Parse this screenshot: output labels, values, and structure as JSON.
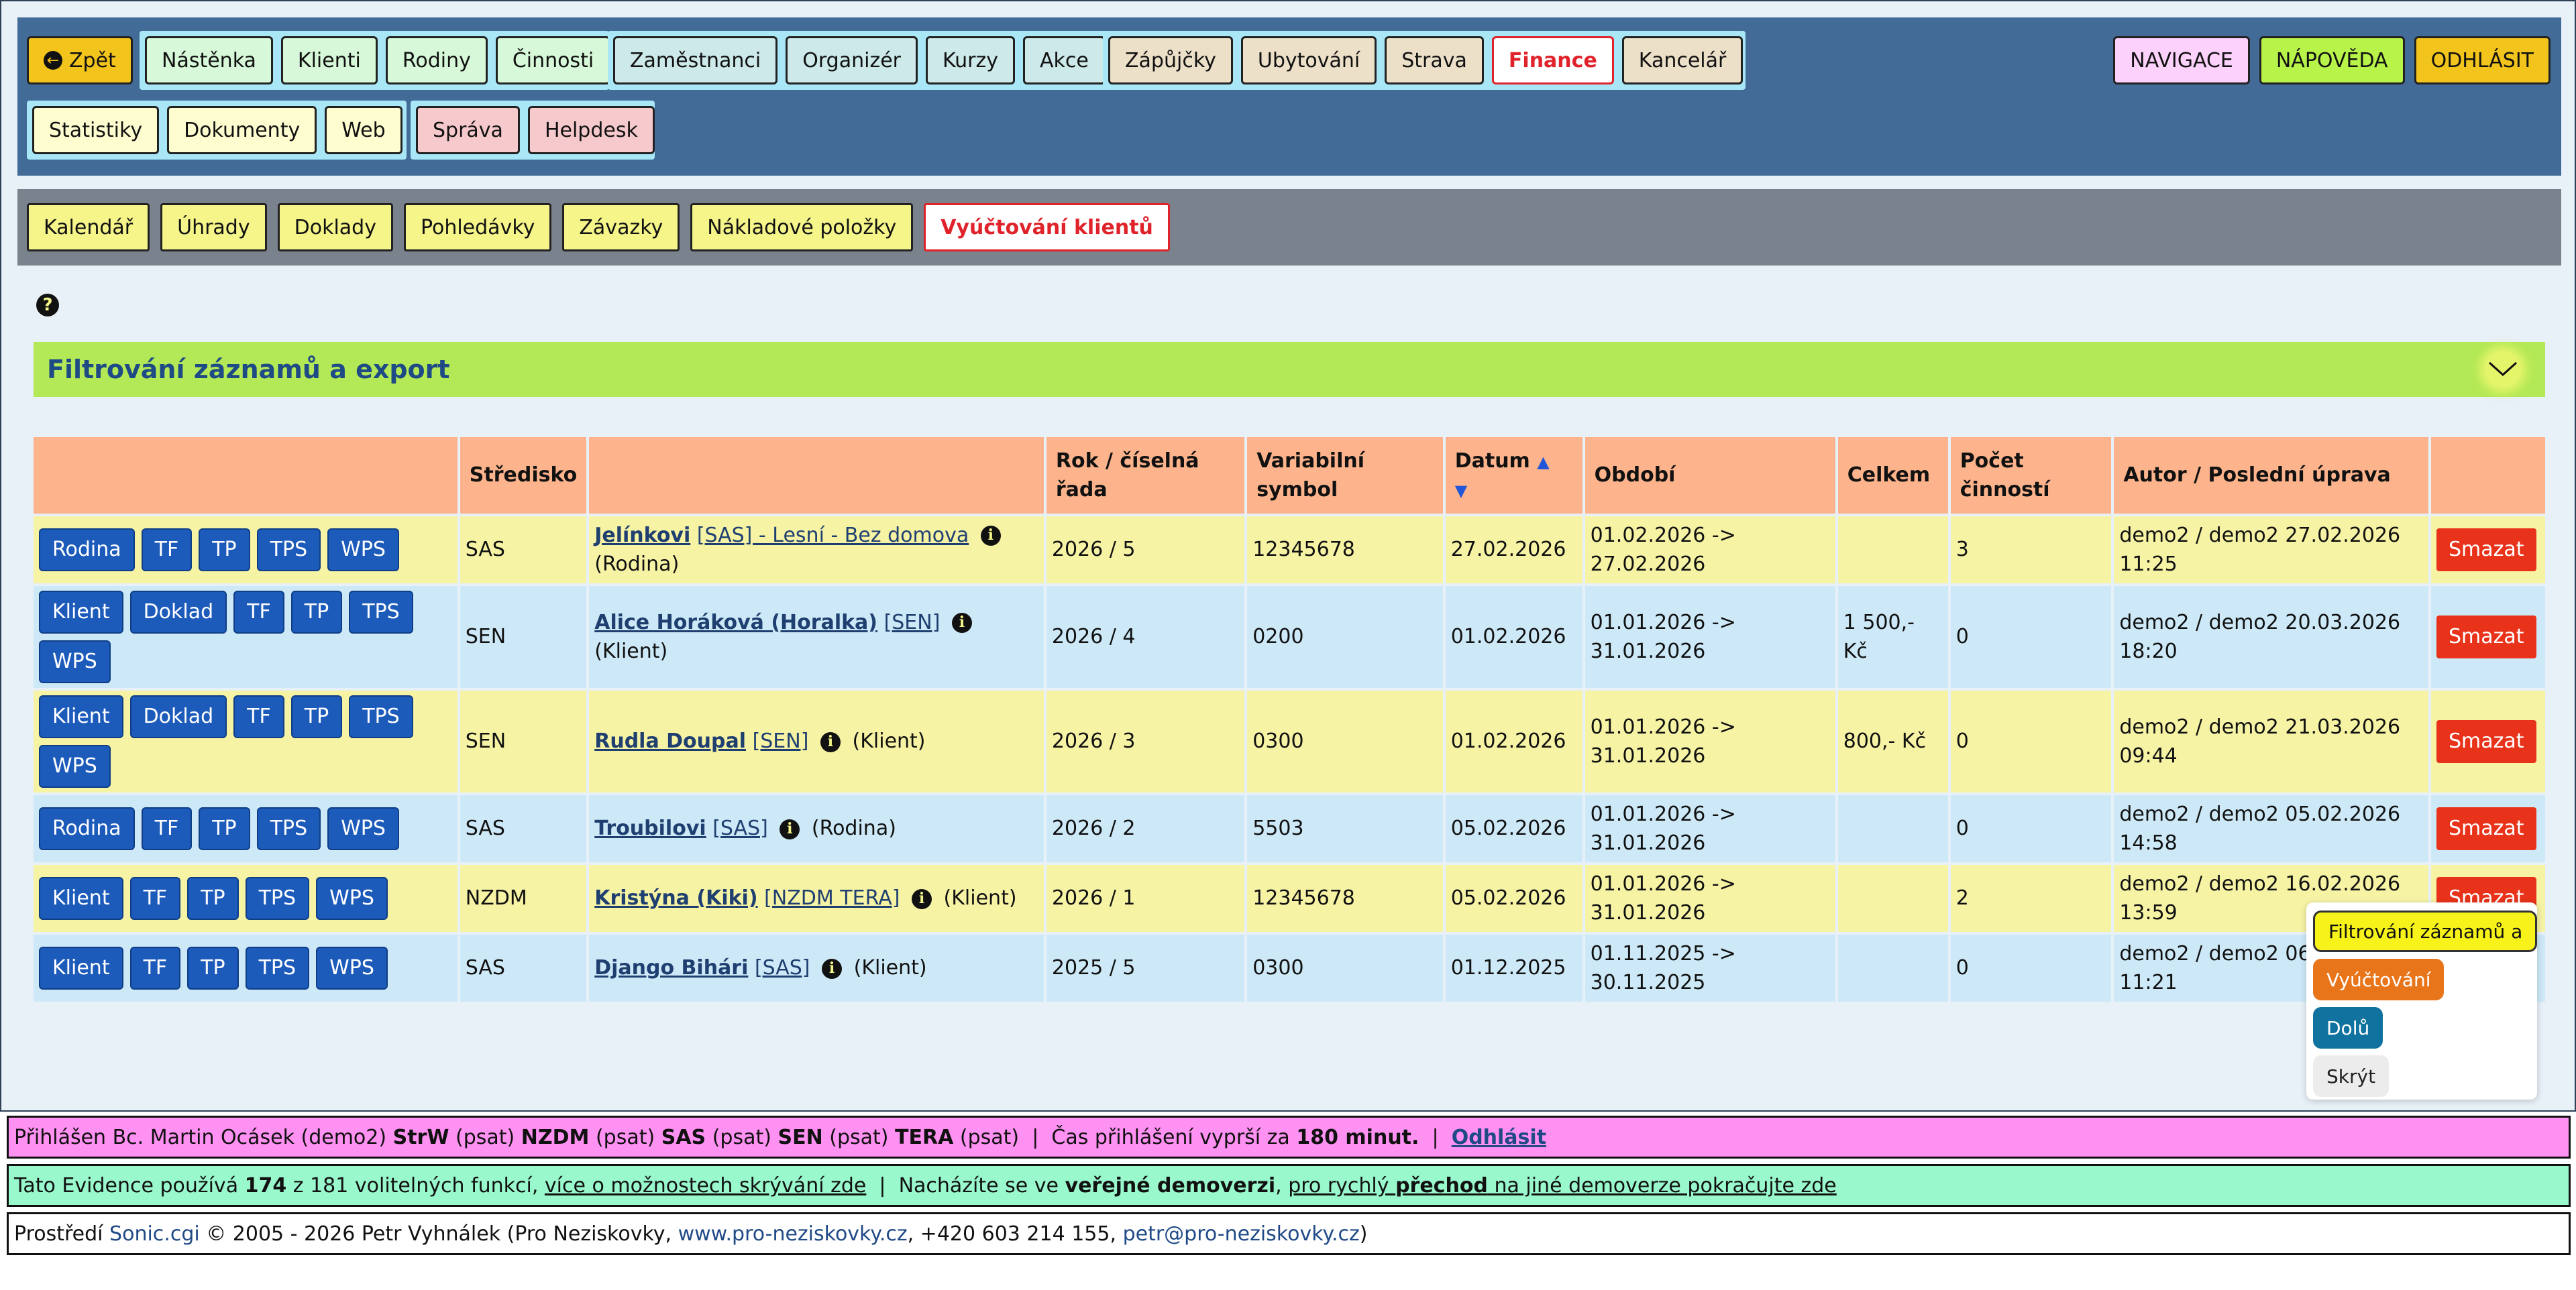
{
  "nav": {
    "back": "Zpět",
    "group1": [
      "Nástěnka",
      "Klienti",
      "Rodiny",
      "Činnosti"
    ],
    "group2": [
      "Zaměstnanci",
      "Organizér",
      "Kurzy",
      "Akce"
    ],
    "group3": [
      "Zápůjčky",
      "Ubytování",
      "Strava",
      "Finance",
      "Kancelář"
    ],
    "group4": [
      "Statistiky",
      "Dokumenty",
      "Web"
    ],
    "group5": [
      "Správa",
      "Helpdesk"
    ],
    "right": [
      "NAVIGACE",
      "NÁPOVĚDA",
      "ODHLÁSIT"
    ]
  },
  "subnav": [
    "Kalendář",
    "Úhrady",
    "Doklady",
    "Pohledávky",
    "Závazky",
    "Nákladové položky",
    "Vyúčtování klientů"
  ],
  "filter_title": "Filtrování záznamů a export",
  "table": {
    "headers": {
      "stredisko": "Středisko",
      "rok": "Rok / číselná řada",
      "vs": "Variabilní symbol",
      "datum": "Datum",
      "obdobi": "Období",
      "celkem": "Celkem",
      "pocet": "Počet činností",
      "autor": "Autor / Poslední úprava"
    },
    "delete_label": "Smazat",
    "rows": [
      {
        "buttons": [
          "Rodina",
          "TF",
          "TP",
          "TPS",
          "WPS"
        ],
        "stredisko": "SAS",
        "name": "Jelínkovi",
        "code": "[SAS] - Lesní - Bez domova",
        "type": "(Rodina)",
        "rok": "2026 / 5",
        "vs": "12345678",
        "datum": "27.02.2026",
        "obdobi_from": "01.02.2026 ->",
        "obdobi_to": "27.02.2026",
        "celkem": "",
        "pocet": "3",
        "autor": "demo2 / demo2 27.02.2026",
        "cas": "11:25"
      },
      {
        "buttons": [
          "Klient",
          "Doklad",
          "TF",
          "TP",
          "TPS",
          "WPS"
        ],
        "stredisko": "SEN",
        "name": "Alice Horáková (Horalka)",
        "code": "[SEN]",
        "type": "(Klient)",
        "rok": "2026 / 4",
        "vs": "0200",
        "datum": "01.02.2026",
        "obdobi_from": "01.01.2026 ->",
        "obdobi_to": "31.01.2026",
        "celkem": "1 500,- Kč",
        "pocet": "0",
        "autor": "demo2 / demo2 20.03.2026",
        "cas": "18:20"
      },
      {
        "buttons": [
          "Klient",
          "Doklad",
          "TF",
          "TP",
          "TPS",
          "WPS"
        ],
        "stredisko": "SEN",
        "name": "Rudla Doupal",
        "code": "[SEN]",
        "type": "(Klient)",
        "rok": "2026 / 3",
        "vs": "0300",
        "datum": "01.02.2026",
        "obdobi_from": "01.01.2026 ->",
        "obdobi_to": "31.01.2026",
        "celkem": "800,- Kč",
        "pocet": "0",
        "autor": "demo2 / demo2 21.03.2026",
        "cas": "09:44"
      },
      {
        "buttons": [
          "Rodina",
          "TF",
          "TP",
          "TPS",
          "WPS"
        ],
        "stredisko": "SAS",
        "name": "Troubilovi",
        "code": "[SAS]",
        "type": "(Rodina)",
        "rok": "2026 / 2",
        "vs": "5503",
        "datum": "05.02.2026",
        "obdobi_from": "01.01.2026 ->",
        "obdobi_to": "31.01.2026",
        "celkem": "",
        "pocet": "0",
        "autor": "demo2 / demo2 05.02.2026",
        "cas": "14:58"
      },
      {
        "buttons": [
          "Klient",
          "TF",
          "TP",
          "TPS",
          "WPS"
        ],
        "stredisko": "NZDM",
        "name": "Kristýna (Kiki)",
        "code": "[NZDM TERA]",
        "type": "(Klient)",
        "rok": "2026 / 1",
        "vs": "12345678",
        "datum": "05.02.2026",
        "obdobi_from": "01.01.2026 ->",
        "obdobi_to": "31.01.2026",
        "celkem": "",
        "pocet": "2",
        "autor": "demo2 / demo2 16.02.2026",
        "cas": "13:59"
      },
      {
        "buttons": [
          "Klient",
          "TF",
          "TP",
          "TPS",
          "WPS"
        ],
        "stredisko": "SAS",
        "name": "Django Bihári",
        "code": "[SAS]",
        "type": "(Klient)",
        "rok": "2025 / 5",
        "vs": "0300",
        "datum": "01.12.2025",
        "obdobi_from": "01.11.2025 ->",
        "obdobi_to": "30.11.2025",
        "celkem": "",
        "pocet": "0",
        "autor": "demo2 / demo2 06",
        "cas": "11:21"
      }
    ]
  },
  "popup": [
    "Filtrování záznamů a",
    "Vyúčtování",
    "Dolů",
    "Skrýt"
  ],
  "footer": {
    "line1": {
      "prefix": "Přihlášen Bc. Martin Ocásek (demo2)",
      "units": [
        [
          "StrW",
          "(psat)"
        ],
        [
          "NZDM",
          "(psat)"
        ],
        [
          "SAS",
          "(psat)"
        ],
        [
          "SEN",
          "(psat)"
        ],
        [
          "TERA",
          "(psat)"
        ]
      ],
      "sep": "|",
      "session_prefix": "Čas přihlášení vyprší za",
      "session_value": "180 minut.",
      "logout": "Odhlásit"
    },
    "line2": {
      "t1": "Tato Evidence používá",
      "count": "174",
      "t2": "z 181 volitelných funkcí,",
      "link1": "více o možnostech skrývání zde",
      "sep": "|",
      "t3": "Nacházíte se ve",
      "bold1": "veřejné demoverzi",
      "link2a": "pro rychlý",
      "link2b": "přechod",
      "link2c": "na jiné demoverze pokračujte zde"
    },
    "line3": {
      "t1": "Prostředí",
      "env": "Sonic.cgi",
      "t2": "© 2005 - 2026 Petr Vyhnálek (Pro Neziskovky,",
      "web": "www.pro-neziskovky.cz",
      "t3": ", +420 603 214 155,",
      "mail": "petr@pro-neziskovky.cz",
      "t4": ")"
    }
  },
  "colors": {
    "topbar": "#436b98",
    "subbar": "#7a828d",
    "filterbar": "#b3e856",
    "header": "#fdb48c",
    "row_yellow": "#f6f3a5",
    "row_blue": "#cde9f8",
    "button_blue": "#1d5bbb",
    "delete_red": "#e8331a",
    "active_red": "#e0222a"
  }
}
